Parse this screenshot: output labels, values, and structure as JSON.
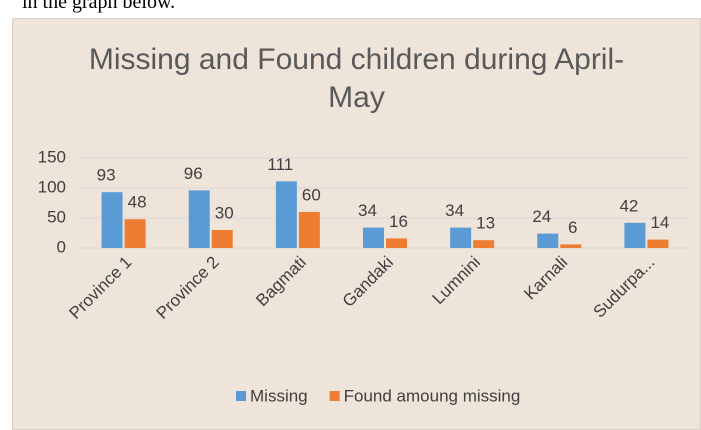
{
  "caption": "in the graph below.",
  "chart_data": {
    "type": "bar",
    "title": "Missing and Found children during April-May",
    "categories": [
      "Province 1",
      "Province 2",
      "Bagmati",
      "Gandaki",
      "Lumnini",
      "Karnali",
      "Sudurpa..."
    ],
    "series": [
      {
        "name": "Missing",
        "color": "#5b9bd5",
        "values": [
          93,
          96,
          111,
          34,
          34,
          24,
          42
        ]
      },
      {
        "name": "Found amoung missing",
        "color": "#ed7d31",
        "values": [
          48,
          30,
          60,
          16,
          13,
          6,
          14
        ]
      }
    ],
    "ylim": [
      0,
      150
    ],
    "yticks": [
      0,
      50,
      100,
      150
    ],
    "grid": true,
    "legend": "bottom"
  }
}
